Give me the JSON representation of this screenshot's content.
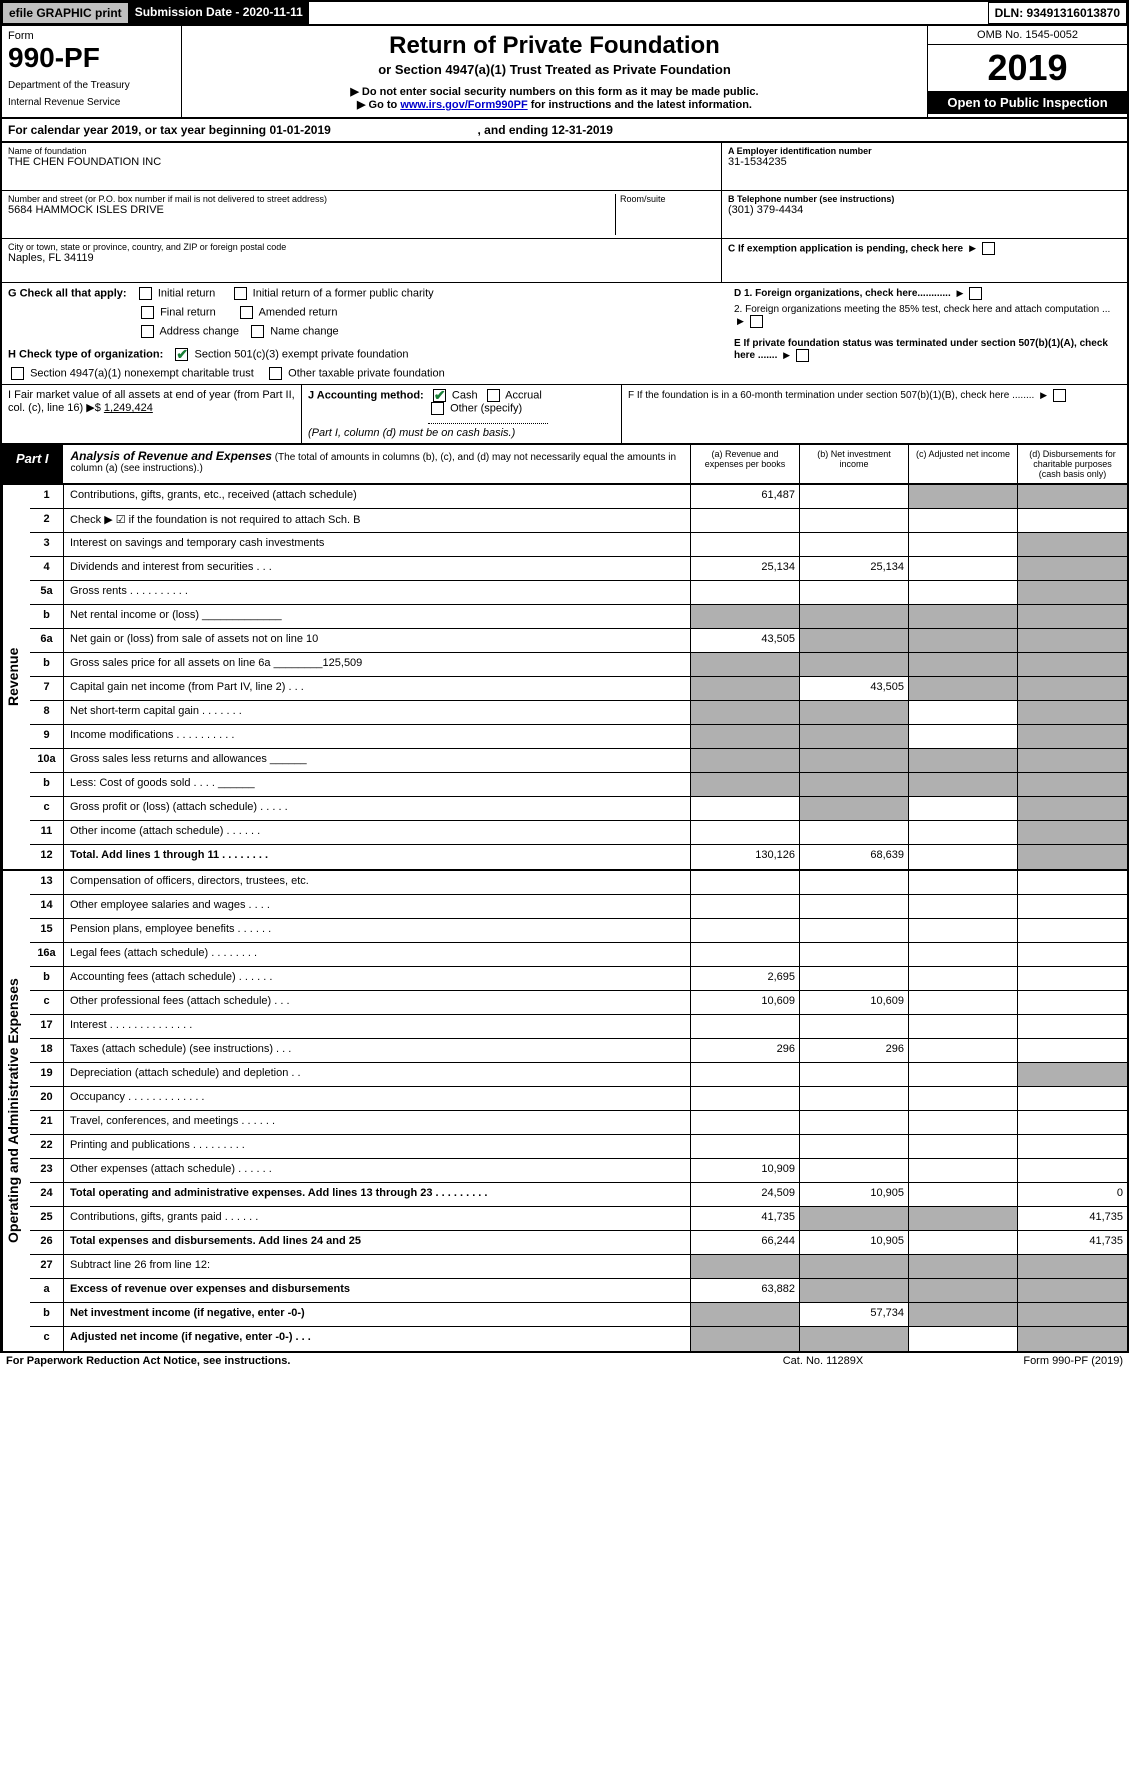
{
  "topbar": {
    "efile": "efile GRAPHIC print",
    "submission": "Submission Date - 2020-11-11",
    "dln": "DLN: 93491316013870"
  },
  "header": {
    "form_word": "Form",
    "form_number": "990-PF",
    "dept": "Department of the Treasury",
    "irs": "Internal Revenue Service",
    "title": "Return of Private Foundation",
    "subtitle": "or Section 4947(a)(1) Trust Treated as Private Foundation",
    "warn": "▶ Do not enter social security numbers on this form as it may be made public.",
    "goto_pre": "▶ Go to ",
    "goto_link": "www.irs.gov/Form990PF",
    "goto_post": " for instructions and the latest information.",
    "omb": "OMB No. 1545-0052",
    "year": "2019",
    "open": "Open to Public Inspection"
  },
  "calyear": {
    "text_a": "For calendar year 2019, or tax year beginning 01-01-2019",
    "text_b": ", and ending 12-31-2019"
  },
  "ident": {
    "name_lbl": "Name of foundation",
    "name_val": "THE CHEN FOUNDATION INC",
    "addr_lbl": "Number and street (or P.O. box number if mail is not delivered to street address)",
    "addr_val": "5684 HAMMOCK ISLES DRIVE",
    "room_lbl": "Room/suite",
    "city_lbl": "City or town, state or province, country, and ZIP or foreign postal code",
    "city_val": "Naples, FL  34119",
    "ein_lbl": "A Employer identification number",
    "ein_val": "31-1534235",
    "tel_lbl": "B Telephone number (see instructions)",
    "tel_val": "(301) 379-4434",
    "c_lbl": "C If exemption application is pending, check here",
    "d1": "D 1. Foreign organizations, check here............",
    "d2": "2. Foreign organizations meeting the 85% test, check here and attach computation ...",
    "e_lbl": "E  If private foundation status was terminated under section 507(b)(1)(A), check here .......",
    "f_lbl": "F  If the foundation is in a 60-month termination under section 507(b)(1)(B), check here ........"
  },
  "g": {
    "label": "G Check all that apply:",
    "o1": "Initial return",
    "o2": "Initial return of a former public charity",
    "o3": "Final return",
    "o4": "Amended return",
    "o5": "Address change",
    "o6": "Name change"
  },
  "h": {
    "label": "H Check type of organization:",
    "o1": "Section 501(c)(3) exempt private foundation",
    "o2": "Section 4947(a)(1) nonexempt charitable trust",
    "o3": "Other taxable private foundation"
  },
  "i": {
    "label": "I Fair market value of all assets at end of year (from Part II, col. (c), line 16) ▶$ ",
    "val": "1,249,424"
  },
  "j": {
    "label": "J Accounting method:",
    "o1": "Cash",
    "o2": "Accrual",
    "o3": "Other (specify)",
    "note": "(Part I, column (d) must be on cash basis.)"
  },
  "part1": {
    "tab": "Part I",
    "title": "Analysis of Revenue and Expenses",
    "note": " (The total of amounts in columns (b), (c), and (d) may not necessarily equal the amounts in column (a) (see instructions).)",
    "col_a": "(a) Revenue and expenses per books",
    "col_b": "(b) Net investment income",
    "col_c": "(c) Adjusted net income",
    "col_d": "(d) Disbursements for charitable purposes (cash basis only)"
  },
  "side": {
    "rev": "Revenue",
    "exp": "Operating and Administrative Expenses"
  },
  "lines_rev": [
    {
      "n": "1",
      "d": "Contributions, gifts, grants, etc., received (attach schedule)",
      "a": "61,487",
      "b": "",
      "c": "g",
      "dd": "g"
    },
    {
      "n": "2",
      "d": "Check ▶ ☑ if the foundation is not required to attach Sch. B",
      "a": "",
      "b": "",
      "c": "",
      "dd": "",
      "nob": true
    },
    {
      "n": "3",
      "d": "Interest on savings and temporary cash investments",
      "a": "",
      "b": "",
      "c": "",
      "dd": "g"
    },
    {
      "n": "4",
      "d": "Dividends and interest from securities   .   .   .",
      "a": "25,134",
      "b": "25,134",
      "c": "",
      "dd": "g"
    },
    {
      "n": "5a",
      "d": "Gross rents    .   .   .   .   .   .   .   .   .   .",
      "a": "",
      "b": "",
      "c": "",
      "dd": "g"
    },
    {
      "n": "b",
      "d": "Net rental income or (loss)  _____________",
      "a": "g",
      "b": "g",
      "c": "g",
      "dd": "g"
    },
    {
      "n": "6a",
      "d": "Net gain or (loss) from sale of assets not on line 10",
      "a": "43,505",
      "b": "g",
      "c": "g",
      "dd": "g"
    },
    {
      "n": "b",
      "d": "Gross sales price for all assets on line 6a ________125,509",
      "a": "g",
      "b": "g",
      "c": "g",
      "dd": "g"
    },
    {
      "n": "7",
      "d": "Capital gain net income (from Part IV, line 2)   .   .   .",
      "a": "g",
      "b": "43,505",
      "c": "g",
      "dd": "g"
    },
    {
      "n": "8",
      "d": "Net short-term capital gain   .   .   .   .   .   .   .",
      "a": "g",
      "b": "g",
      "c": "",
      "dd": "g"
    },
    {
      "n": "9",
      "d": "Income modifications  .   .   .   .   .   .   .   .   .   .",
      "a": "g",
      "b": "g",
      "c": "",
      "dd": "g"
    },
    {
      "n": "10a",
      "d": "Gross sales less returns and allowances  ______",
      "a": "g",
      "b": "g",
      "c": "g",
      "dd": "g"
    },
    {
      "n": "b",
      "d": "Less: Cost of goods sold     .   .   .   .  ______",
      "a": "g",
      "b": "g",
      "c": "g",
      "dd": "g"
    },
    {
      "n": "c",
      "d": "Gross profit or (loss) (attach schedule)    .   .   .   .   .",
      "a": "",
      "b": "g",
      "c": "",
      "dd": "g"
    },
    {
      "n": "11",
      "d": "Other income (attach schedule)    .   .   .   .   .   .",
      "a": "",
      "b": "",
      "c": "",
      "dd": "g"
    },
    {
      "n": "12",
      "d": "Total. Add lines 1 through 11    .   .   .   .   .   .   .   .",
      "a": "130,126",
      "b": "68,639",
      "c": "",
      "dd": "g",
      "bold": true
    }
  ],
  "lines_exp": [
    {
      "n": "13",
      "d": "Compensation of officers, directors, trustees, etc.",
      "a": "",
      "b": "",
      "c": "",
      "dd": ""
    },
    {
      "n": "14",
      "d": "Other employee salaries and wages    .   .   .   .",
      "a": "",
      "b": "",
      "c": "",
      "dd": ""
    },
    {
      "n": "15",
      "d": "Pension plans, employee benefits   .   .   .   .   .   .",
      "a": "",
      "b": "",
      "c": "",
      "dd": ""
    },
    {
      "n": "16a",
      "d": "Legal fees (attach schedule)  .   .   .   .   .   .   .   .",
      "a": "",
      "b": "",
      "c": "",
      "dd": ""
    },
    {
      "n": "b",
      "d": "Accounting fees (attach schedule)  .   .   .   .   .   .",
      "a": "2,695",
      "b": "",
      "c": "",
      "dd": ""
    },
    {
      "n": "c",
      "d": "Other professional fees (attach schedule)    .   .   .",
      "a": "10,609",
      "b": "10,609",
      "c": "",
      "dd": ""
    },
    {
      "n": "17",
      "d": "Interest   .   .   .   .   .   .   .   .   .   .   .   .   .   .",
      "a": "",
      "b": "",
      "c": "",
      "dd": ""
    },
    {
      "n": "18",
      "d": "Taxes (attach schedule) (see instructions)    .   .   .",
      "a": "296",
      "b": "296",
      "c": "",
      "dd": ""
    },
    {
      "n": "19",
      "d": "Depreciation (attach schedule) and depletion    .   .",
      "a": "",
      "b": "",
      "c": "",
      "dd": "g"
    },
    {
      "n": "20",
      "d": "Occupancy  .   .   .   .   .   .   .   .   .   .   .   .   .",
      "a": "",
      "b": "",
      "c": "",
      "dd": ""
    },
    {
      "n": "21",
      "d": "Travel, conferences, and meetings  .   .   .   .   .   .",
      "a": "",
      "b": "",
      "c": "",
      "dd": ""
    },
    {
      "n": "22",
      "d": "Printing and publications  .   .   .   .   .   .   .   .   .",
      "a": "",
      "b": "",
      "c": "",
      "dd": ""
    },
    {
      "n": "23",
      "d": "Other expenses (attach schedule)   .   .   .   .   .   .",
      "a": "10,909",
      "b": "",
      "c": "",
      "dd": ""
    },
    {
      "n": "24",
      "d": "Total operating and administrative expenses. Add lines 13 through 23   .   .   .   .   .   .   .   .   .",
      "a": "24,509",
      "b": "10,905",
      "c": "",
      "dd": "0",
      "bold": true
    },
    {
      "n": "25",
      "d": "Contributions, gifts, grants paid     .   .   .   .   .   .",
      "a": "41,735",
      "b": "g",
      "c": "g",
      "dd": "41,735"
    },
    {
      "n": "26",
      "d": "Total expenses and disbursements. Add lines 24 and 25",
      "a": "66,244",
      "b": "10,905",
      "c": "",
      "dd": "41,735",
      "bold": true
    },
    {
      "n": "27",
      "d": "Subtract line 26 from line 12:",
      "a": "g",
      "b": "g",
      "c": "g",
      "dd": "g"
    },
    {
      "n": "a",
      "d": "Excess of revenue over expenses and disbursements",
      "a": "63,882",
      "b": "g",
      "c": "g",
      "dd": "g",
      "bold": true
    },
    {
      "n": "b",
      "d": "Net investment income (if negative, enter -0-)",
      "a": "g",
      "b": "57,734",
      "c": "g",
      "dd": "g",
      "bold": true
    },
    {
      "n": "c",
      "d": "Adjusted net income (if negative, enter -0-)   .   .   .",
      "a": "g",
      "b": "g",
      "c": "",
      "dd": "g",
      "bold": true
    }
  ],
  "footer": {
    "left": "For Paperwork Reduction Act Notice, see instructions.",
    "mid": "Cat. No. 11289X",
    "right": "Form 990-PF (2019)"
  },
  "colors": {
    "grey": "#b0b0b0",
    "link": "#0000cc",
    "check": "#1a7f37"
  }
}
